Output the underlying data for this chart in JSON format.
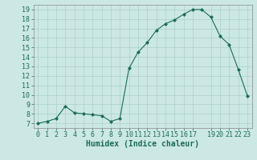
{
  "x": [
    0,
    1,
    2,
    3,
    4,
    5,
    6,
    7,
    8,
    9,
    10,
    11,
    12,
    13,
    14,
    15,
    16,
    17,
    18,
    19,
    20,
    21,
    22,
    23
  ],
  "y": [
    7.0,
    7.2,
    7.5,
    8.8,
    8.1,
    8.0,
    7.9,
    7.8,
    7.2,
    7.5,
    12.8,
    14.5,
    15.5,
    16.8,
    17.5,
    17.9,
    18.5,
    19.0,
    19.0,
    18.2,
    16.2,
    15.3,
    12.7,
    9.9
  ],
  "xlabel": "Humidex (Indice chaleur)",
  "xlim": [
    -0.5,
    23.5
  ],
  "ylim": [
    6.5,
    19.5
  ],
  "yticks": [
    7,
    8,
    9,
    10,
    11,
    12,
    13,
    14,
    15,
    16,
    17,
    18,
    19
  ],
  "xticks": [
    0,
    1,
    2,
    3,
    4,
    5,
    6,
    7,
    8,
    9,
    10,
    11,
    12,
    13,
    14,
    15,
    16,
    17,
    19,
    20,
    21,
    22,
    23
  ],
  "line_color": "#1a6b5a",
  "marker_color": "#1a6b5a",
  "bg_color": "#cce8e4",
  "grid_color": "#aacfcb",
  "label_fontsize": 7,
  "tick_fontsize": 6
}
